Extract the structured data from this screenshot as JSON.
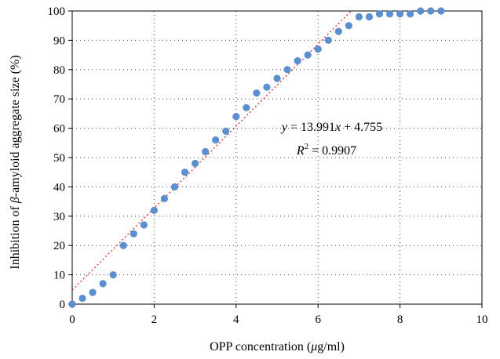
{
  "chart_data": {
    "type": "scatter",
    "xlabel": {
      "pre": "OPP concentration (",
      "greek": "μ",
      "post": "g/ml)"
    },
    "ylabel": {
      "pre": "Inhibition of ",
      "greek": "β",
      "post": "-amyloid aggregate size (%)"
    },
    "xlim": [
      0,
      10
    ],
    "ylim": [
      0,
      100
    ],
    "x_ticks": [
      0,
      2,
      4,
      6,
      8,
      10
    ],
    "y_ticks": [
      0,
      10,
      20,
      30,
      40,
      50,
      60,
      70,
      80,
      90,
      100
    ],
    "grid": "dotted",
    "marker_color": "#5b8fcf",
    "trendline_color": "#e02020",
    "trendline": {
      "slope": 13.991,
      "intercept": 4.755
    },
    "equation": {
      "line1": {
        "y": "y",
        "eq": " = 13.991",
        "x": "x",
        "rest": " + 4.755"
      },
      "line2": {
        "r": "R",
        "sup": "2",
        "rest": " = 0.9907"
      }
    },
    "points": [
      [
        0,
        0
      ],
      [
        0.25,
        2
      ],
      [
        0.5,
        4
      ],
      [
        0.75,
        7
      ],
      [
        1.0,
        10
      ],
      [
        1.25,
        20
      ],
      [
        1.5,
        24
      ],
      [
        1.75,
        27
      ],
      [
        2.0,
        32
      ],
      [
        2.25,
        36
      ],
      [
        2.5,
        40
      ],
      [
        2.75,
        45
      ],
      [
        3.0,
        48
      ],
      [
        3.25,
        52
      ],
      [
        3.5,
        56
      ],
      [
        3.75,
        59
      ],
      [
        4.0,
        64
      ],
      [
        4.25,
        67
      ],
      [
        4.5,
        72
      ],
      [
        4.75,
        74
      ],
      [
        5.0,
        77
      ],
      [
        5.25,
        80
      ],
      [
        5.5,
        83
      ],
      [
        5.75,
        85
      ],
      [
        6.0,
        87
      ],
      [
        6.25,
        90
      ],
      [
        6.5,
        93
      ],
      [
        6.75,
        95
      ],
      [
        7.0,
        98
      ],
      [
        7.25,
        98
      ],
      [
        7.5,
        99
      ],
      [
        7.75,
        99
      ],
      [
        8.0,
        99
      ],
      [
        8.25,
        99
      ],
      [
        8.5,
        100
      ],
      [
        8.75,
        100
      ],
      [
        9.0,
        100
      ]
    ]
  }
}
